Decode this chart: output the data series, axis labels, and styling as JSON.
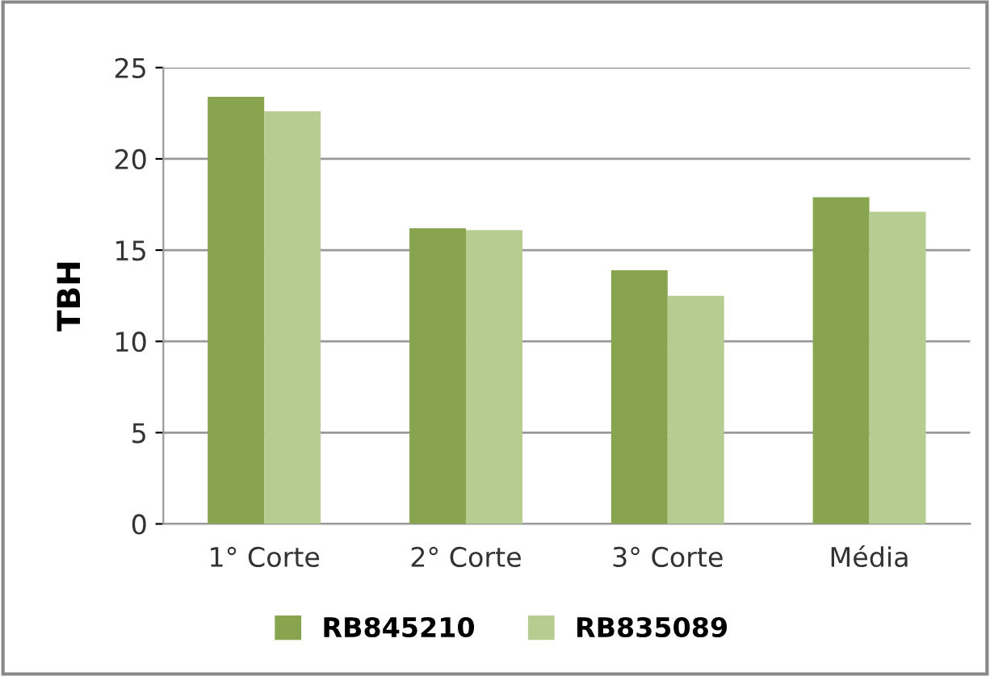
{
  "chart_data": {
    "type": "bar",
    "ylabel": "TBH",
    "categories": [
      "1° Corte",
      "2° Corte",
      "3° Corte",
      "Média"
    ],
    "series": [
      {
        "name": "RB845210",
        "color": "#88a44f",
        "values": [
          23.4,
          16.2,
          13.9,
          17.9
        ]
      },
      {
        "name": "RB835089",
        "color": "#b6cd91",
        "values": [
          22.6,
          16.1,
          12.5,
          17.1
        ]
      }
    ],
    "ylim": [
      0,
      25
    ],
    "yticks": [
      0,
      5,
      10,
      15,
      20,
      25
    ],
    "grid": "y",
    "legend": "bottom"
  }
}
